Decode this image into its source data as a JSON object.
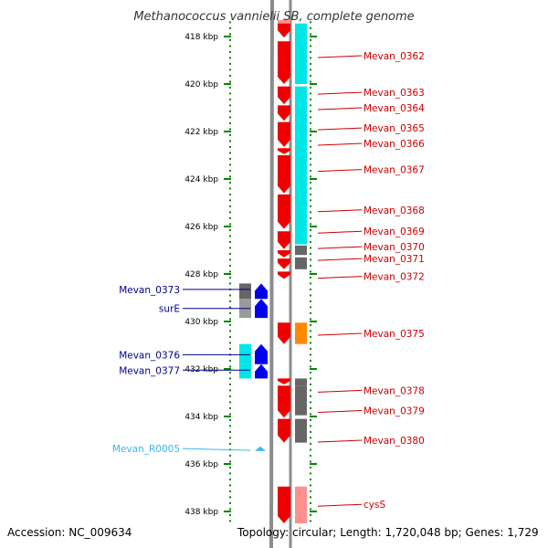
{
  "title": "Methanococcus vannielii SB, complete genome",
  "footer": {
    "accession": "Accession: NC_009634",
    "summary": "Topology: circular; Length: 1,720,048 bp; Genes: 1,729"
  },
  "colors": {
    "forward_cds": "#ee0000",
    "forward_rna": "#ff8f8f",
    "reverse_cds": "#0000ee",
    "cyan_feature": "#00e6e6",
    "dark_feature": "#666666",
    "grey_feature": "#9a9a9a",
    "orange_feature": "#ff8800",
    "right_label": "#cc0000",
    "left_label": "#00008b",
    "rna_label": "#33bbee",
    "tick_green": "#008800",
    "backbone": "#8c8c8c"
  },
  "axis": {
    "unit": "kbp",
    "ticks": [
      "418 kbp",
      "420 kbp",
      "422 kbp",
      "424 kbp",
      "426 kbp",
      "428 kbp",
      "430 kbp",
      "432 kbp",
      "434 kbp",
      "436 kbp",
      "438 kbp"
    ]
  },
  "right_labels": [
    {
      "text": "Mevan_0362",
      "kbp": 418.81
    },
    {
      "text": "Mevan_0363",
      "kbp": 420.35
    },
    {
      "text": "Mevan_0364",
      "kbp": 421.0
    },
    {
      "text": "Mevan_0365",
      "kbp": 421.85
    },
    {
      "text": "Mevan_0366",
      "kbp": 422.5
    },
    {
      "text": "Mevan_0367",
      "kbp": 423.6
    },
    {
      "text": "Mevan_0368",
      "kbp": 425.3
    },
    {
      "text": "Mevan_0369",
      "kbp": 426.2
    },
    {
      "text": "Mevan_0370",
      "kbp": 426.85
    },
    {
      "text": "Mevan_0371",
      "kbp": 427.35
    },
    {
      "text": "Mevan_0372",
      "kbp": 428.1
    },
    {
      "text": "Mevan_0375",
      "kbp": 430.5
    },
    {
      "text": "Mevan_0378",
      "kbp": 432.9
    },
    {
      "text": "Mevan_0379",
      "kbp": 433.75
    },
    {
      "text": "Mevan_0380",
      "kbp": 435.0
    },
    {
      "text": "cysS",
      "kbp": 437.7
    }
  ],
  "left_labels": [
    {
      "text": "Mevan_0373",
      "kbp": 428.65,
      "kind": "gene"
    },
    {
      "text": "surE",
      "kbp": 429.45,
      "kind": "gene"
    },
    {
      "text": "Mevan_0376",
      "kbp": 431.4,
      "kind": "gene"
    },
    {
      "text": "Mevan_0377",
      "kbp": 432.05,
      "kind": "gene"
    },
    {
      "text": "Mevan_R0005",
      "kbp": 435.35,
      "kind": "rna"
    }
  ],
  "forward_features": [
    {
      "start": 417.45,
      "end": 418.05
    },
    {
      "start": 418.2,
      "end": 420.0
    },
    {
      "start": 420.1,
      "end": 420.85
    },
    {
      "start": 420.9,
      "end": 421.55
    },
    {
      "start": 421.6,
      "end": 422.65
    },
    {
      "start": 422.7,
      "end": 422.95
    },
    {
      "start": 423.0,
      "end": 424.6
    },
    {
      "start": 424.65,
      "end": 426.1
    },
    {
      "start": 426.2,
      "end": 426.95
    },
    {
      "start": 427.0,
      "end": 427.3
    },
    {
      "start": 427.35,
      "end": 427.8
    },
    {
      "start": 427.9,
      "end": 428.2
    },
    {
      "start": 430.05,
      "end": 430.95
    },
    {
      "start": 432.4,
      "end": 432.65
    },
    {
      "start": 432.7,
      "end": 434.05
    },
    {
      "start": 434.1,
      "end": 435.1
    },
    {
      "start": 436.95,
      "end": 438.5
    }
  ],
  "forward_rna_features": [
    {
      "start": 417.3,
      "end": 417.8
    }
  ],
  "right_boxes": [
    {
      "start": 417.45,
      "end": 420.0,
      "color": "#00e6e6"
    },
    {
      "start": 420.1,
      "end": 426.75,
      "color": "#00e6e6"
    },
    {
      "start": 426.8,
      "end": 427.2,
      "color": "#666666"
    },
    {
      "start": 427.3,
      "end": 427.8,
      "color": "#666666"
    },
    {
      "start": 430.05,
      "end": 430.95,
      "color": "#ff8800"
    },
    {
      "start": 432.4,
      "end": 432.7,
      "color": "#666666"
    },
    {
      "start": 432.7,
      "end": 433.95,
      "color": "#666666"
    },
    {
      "start": 434.1,
      "end": 435.1,
      "color": "#666666"
    },
    {
      "start": 436.95,
      "end": 438.5,
      "color": "#ff8f8f"
    }
  ],
  "reverse_features": [
    {
      "start": 428.4,
      "end": 429.05
    },
    {
      "start": 429.05,
      "end": 429.85
    },
    {
      "start": 430.95,
      "end": 431.8
    },
    {
      "start": 431.8,
      "end": 432.4
    }
  ],
  "left_boxes": [
    {
      "start": 428.4,
      "end": 429.05,
      "color": "#666666"
    },
    {
      "start": 429.05,
      "end": 429.85,
      "color": "#9a9a9a"
    },
    {
      "start": 430.95,
      "end": 431.8,
      "color": "#00e6e6"
    },
    {
      "start": 431.8,
      "end": 432.4,
      "color": "#00e6e6"
    }
  ],
  "rna_reverse_features": [
    {
      "start": 435.3,
      "end": 435.5
    }
  ]
}
